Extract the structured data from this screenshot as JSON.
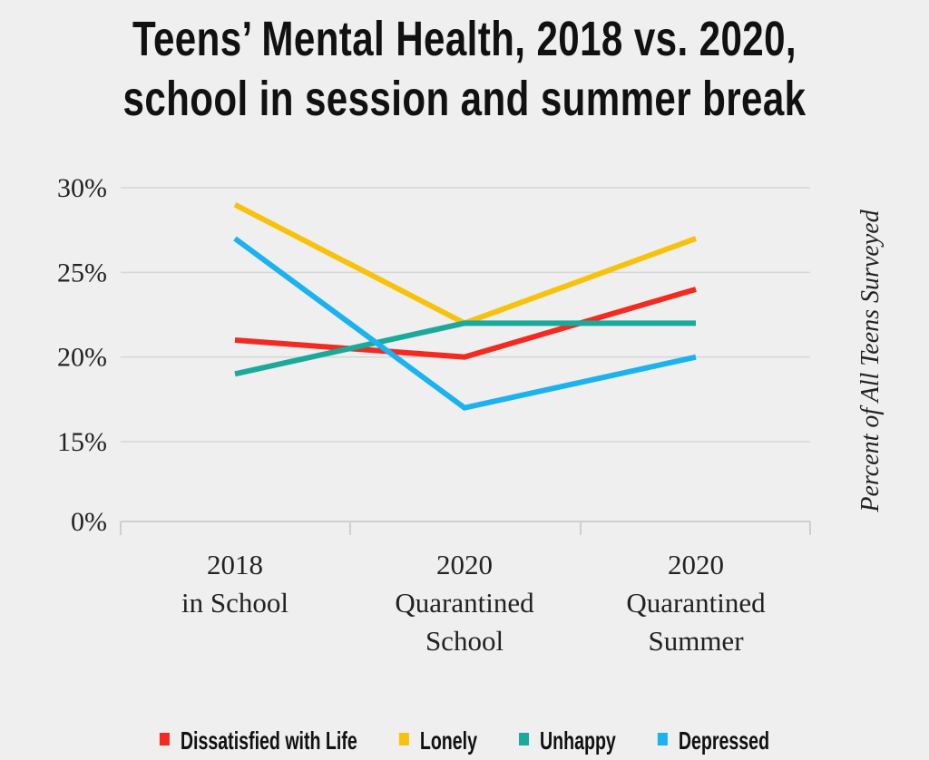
{
  "chart_data": {
    "type": "line",
    "title_lines": [
      "Teens’ Mental Health, 2018 vs. 2020,",
      "school in session and summer break"
    ],
    "categories": [
      [
        "2018",
        "in School"
      ],
      [
        "2020",
        "Quarantined",
        "School"
      ],
      [
        "2020",
        "Quarantined",
        "Summer"
      ]
    ],
    "ylabel": "Percent of All Teens Surveyed",
    "yticks": [
      0,
      15,
      20,
      25,
      30
    ],
    "ytick_labels": [
      "0%",
      "15%",
      "20%",
      "25%",
      "30%"
    ],
    "ylim": [
      15,
      30
    ],
    "axis_break": "0% shown below 15% (broken axis)",
    "grid": true,
    "legend_position": "bottom",
    "series": [
      {
        "name": "Dissatisfied with Life",
        "color": "#f4291f",
        "values": [
          21,
          20,
          24
        ]
      },
      {
        "name": "Lonely",
        "color": "#f7c20c",
        "values": [
          29,
          22,
          27
        ]
      },
      {
        "name": "Unhappy",
        "color": "#1aa99a",
        "values": [
          19,
          22,
          22
        ]
      },
      {
        "name": "Depressed",
        "color": "#1ab2ef",
        "values": [
          27,
          17,
          20
        ]
      }
    ]
  }
}
